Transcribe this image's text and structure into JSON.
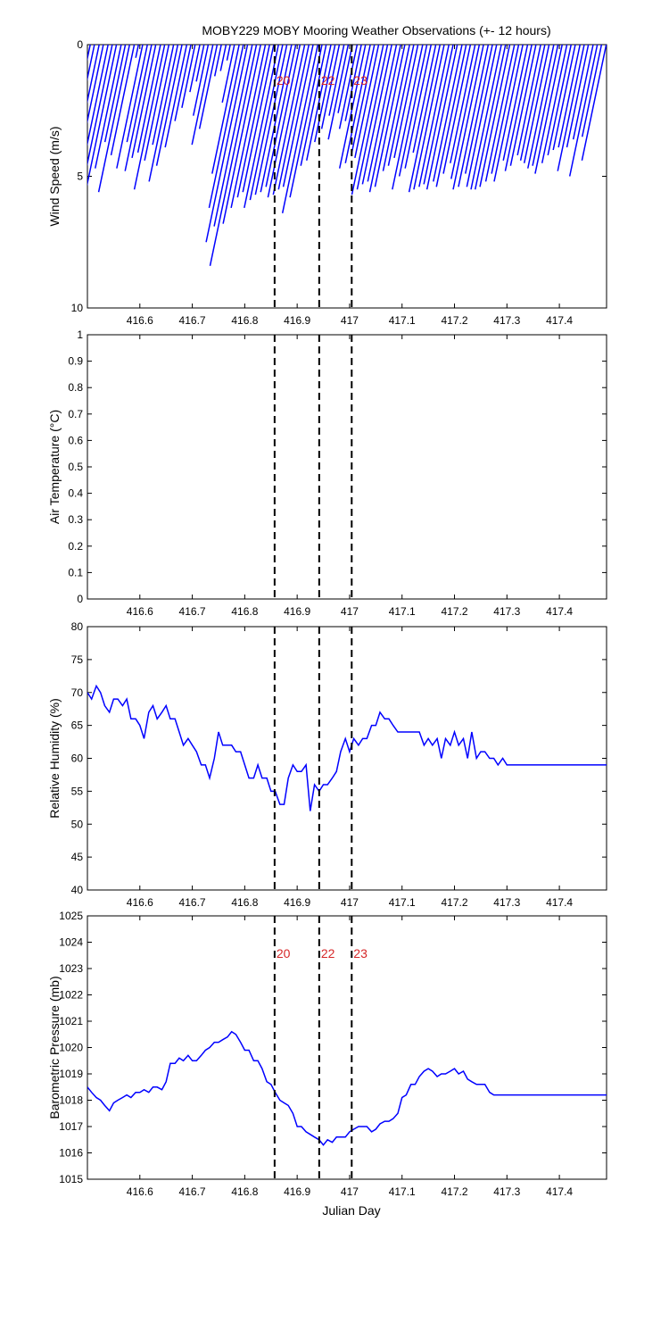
{
  "chart_data": {
    "title": "MOBY229 MOBY Mooring Weather Observations (+- 12 hours)",
    "xlabel": "Julian Day",
    "xlim": [
      416.5,
      417.49
    ],
    "xticks": [
      416.6,
      416.7,
      416.8,
      416.9,
      417,
      417.1,
      417.2,
      417.3,
      417.4
    ],
    "markers": [
      {
        "label": "20",
        "x": 416.857
      },
      {
        "label": "22",
        "x": 416.942
      },
      {
        "label": "23",
        "x": 417.004
      }
    ],
    "panels": [
      {
        "id": "wind",
        "type": "stick",
        "ylabel": "Wind Speed (m/s)",
        "ylim": [
          0,
          10
        ],
        "y_reversed": true,
        "yticks": [
          0,
          5,
          10
        ],
        "show_markers": true,
        "samples": [
          {
            "t": 416.502,
            "speed": 4.5
          },
          {
            "t": 416.51,
            "speed": 5.5
          },
          {
            "t": 416.519,
            "speed": 5.4
          },
          {
            "t": 416.527,
            "speed": 4.3
          },
          {
            "t": 416.536,
            "speed": 5.8
          },
          {
            "t": 416.544,
            "speed": 6.3
          },
          {
            "t": 416.552,
            "speed": 5.4
          },
          {
            "t": 416.561,
            "speed": 4.7
          },
          {
            "t": 416.569,
            "speed": 3.7
          },
          {
            "t": 416.577,
            "speed": 5.6
          },
          {
            "t": 416.586,
            "speed": 4.2
          },
          {
            "t": 416.594,
            "speed": 0.5
          },
          {
            "t": 416.602,
            "speed": 4.7
          },
          {
            "t": 416.611,
            "speed": 3.7
          },
          {
            "t": 416.619,
            "speed": 4.8
          },
          {
            "t": 416.627,
            "speed": 4.3
          },
          {
            "t": 416.636,
            "speed": 4.1
          },
          {
            "t": 416.644,
            "speed": 5.5
          },
          {
            "t": 416.652,
            "speed": 4.4
          },
          {
            "t": 416.661,
            "speed": 3.8
          },
          {
            "t": 416.669,
            "speed": 5.2
          },
          {
            "t": 416.677,
            "speed": 4.6
          },
          {
            "t": 416.686,
            "speed": 3.9
          },
          {
            "t": 416.694,
            "speed": 2.9
          },
          {
            "t": 416.702,
            "speed": 2.4
          },
          {
            "t": 416.711,
            "speed": 1.8
          },
          {
            "t": 416.719,
            "speed": 1.4
          },
          {
            "t": 416.727,
            "speed": 2.7
          },
          {
            "t": 416.736,
            "speed": 3.8
          },
          {
            "t": 416.744,
            "speed": 3.2
          },
          {
            "t": 416.752,
            "speed": 1.2
          },
          {
            "t": 416.761,
            "speed": 1.0
          },
          {
            "t": 416.769,
            "speed": 0.6
          },
          {
            "t": 416.777,
            "speed": 2.2
          },
          {
            "t": 416.786,
            "speed": 4.9
          },
          {
            "t": 416.794,
            "speed": 6.2
          },
          {
            "t": 416.802,
            "speed": 7.5
          },
          {
            "t": 416.811,
            "speed": 6.9
          },
          {
            "t": 416.819,
            "speed": 8.4
          },
          {
            "t": 416.827,
            "speed": 6.8
          },
          {
            "t": 416.836,
            "speed": 6.2
          },
          {
            "t": 416.844,
            "speed": 5.8
          },
          {
            "t": 416.852,
            "speed": 5.6
          },
          {
            "t": 416.861,
            "speed": 6.2
          },
          {
            "t": 416.869,
            "speed": 5.9
          },
          {
            "t": 416.877,
            "speed": 5.7
          },
          {
            "t": 416.886,
            "speed": 5.6
          },
          {
            "t": 416.894,
            "speed": 5.4
          },
          {
            "t": 416.902,
            "speed": 5.8
          },
          {
            "t": 416.911,
            "speed": 5.7
          },
          {
            "t": 416.919,
            "speed": 5.5
          },
          {
            "t": 416.927,
            "speed": 5.4
          },
          {
            "t": 416.936,
            "speed": 6.4
          },
          {
            "t": 416.944,
            "speed": 5.8
          },
          {
            "t": 416.952,
            "speed": 4.6
          },
          {
            "t": 416.961,
            "speed": 4.4
          },
          {
            "t": 416.969,
            "speed": 3.7
          },
          {
            "t": 416.977,
            "speed": 3.2
          },
          {
            "t": 416.986,
            "speed": 2.7
          },
          {
            "t": 416.994,
            "speed": 3.6
          },
          {
            "t": 417.002,
            "speed": 2.6
          },
          {
            "t": 417.011,
            "speed": 3.2
          },
          {
            "t": 417.019,
            "speed": 2.9
          },
          {
            "t": 417.027,
            "speed": 4.7
          },
          {
            "t": 417.036,
            "speed": 4.5
          },
          {
            "t": 417.044,
            "speed": 4.2
          },
          {
            "t": 417.052,
            "speed": 4.3
          },
          {
            "t": 417.061,
            "speed": 5.7
          },
          {
            "t": 417.069,
            "speed": 5.5
          },
          {
            "t": 417.077,
            "speed": 5.3
          },
          {
            "t": 417.086,
            "speed": 5.2
          },
          {
            "t": 417.094,
            "speed": 5.6
          },
          {
            "t": 417.102,
            "speed": 5.4
          },
          {
            "t": 417.111,
            "speed": 4.8
          },
          {
            "t": 417.119,
            "speed": 4.6
          },
          {
            "t": 417.127,
            "speed": 4.3
          },
          {
            "t": 417.136,
            "speed": 5.5
          },
          {
            "t": 417.144,
            "speed": 5.0
          },
          {
            "t": 417.152,
            "speed": 4.7
          },
          {
            "t": 417.161,
            "speed": 4.1
          },
          {
            "t": 417.169,
            "speed": 5.6
          },
          {
            "t": 417.177,
            "speed": 5.5
          },
          {
            "t": 417.186,
            "speed": 5.4
          },
          {
            "t": 417.194,
            "speed": 5.3
          },
          {
            "t": 417.202,
            "speed": 5.5
          },
          {
            "t": 417.211,
            "speed": 5.2
          },
          {
            "t": 417.219,
            "speed": 5.4
          },
          {
            "t": 417.227,
            "speed": 4.9
          },
          {
            "t": 417.236,
            "speed": 4.5
          },
          {
            "t": 417.244,
            "speed": 5.1
          },
          {
            "t": 417.252,
            "speed": 5.5
          },
          {
            "t": 417.261,
            "speed": 5.4
          },
          {
            "t": 417.269,
            "speed": 4.9
          },
          {
            "t": 417.277,
            "speed": 5.4
          },
          {
            "t": 417.286,
            "speed": 5.5
          },
          {
            "t": 417.294,
            "speed": 5.5
          },
          {
            "t": 417.302,
            "speed": 5.4
          },
          {
            "t": 417.311,
            "speed": 5.2
          },
          {
            "t": 417.319,
            "speed": 4.9
          },
          {
            "t": 417.327,
            "speed": 5.2
          },
          {
            "t": 417.336,
            "speed": 4.4
          },
          {
            "t": 417.344,
            "speed": 4.8
          },
          {
            "t": 417.352,
            "speed": 4.6
          },
          {
            "t": 417.361,
            "speed": 4.2
          },
          {
            "t": 417.369,
            "speed": 4.4
          },
          {
            "t": 417.377,
            "speed": 4.5
          },
          {
            "t": 417.386,
            "speed": 4.7
          },
          {
            "t": 417.394,
            "speed": 4.6
          },
          {
            "t": 417.402,
            "speed": 4.9
          },
          {
            "t": 417.411,
            "speed": 4.5
          },
          {
            "t": 417.419,
            "speed": 4.2
          },
          {
            "t": 417.427,
            "speed": 4.0
          },
          {
            "t": 417.436,
            "speed": 3.9
          },
          {
            "t": 417.444,
            "speed": 4.8
          },
          {
            "t": 417.452,
            "speed": 3.9
          },
          {
            "t": 417.461,
            "speed": 3.6
          },
          {
            "t": 417.469,
            "speed": 5.0
          },
          {
            "t": 417.477,
            "speed": 3.5
          },
          {
            "t": 417.486,
            "speed": 4.4
          }
        ]
      },
      {
        "id": "airtemp",
        "type": "line",
        "ylabel": "Air Temperature (°C)",
        "ylim": [
          0,
          1
        ],
        "yticks": [
          0,
          0.1,
          0.2,
          0.3,
          0.4,
          0.5,
          0.6,
          0.7,
          0.8,
          0.9,
          1
        ],
        "show_markers": false,
        "x": [],
        "y": []
      },
      {
        "id": "humidity",
        "type": "line",
        "ylabel": "Relative Humidity (%)",
        "ylim": [
          40,
          80
        ],
        "yticks": [
          40,
          45,
          50,
          55,
          60,
          65,
          70,
          75,
          80
        ],
        "show_markers": false,
        "x": [
          416.5,
          416.508,
          416.517,
          416.525,
          416.533,
          416.542,
          416.55,
          416.558,
          416.567,
          416.575,
          416.583,
          416.592,
          416.6,
          416.608,
          416.617,
          416.625,
          416.633,
          416.642,
          416.65,
          416.658,
          416.667,
          416.675,
          416.683,
          416.692,
          416.7,
          416.708,
          416.717,
          416.725,
          416.733,
          416.742,
          416.75,
          416.758,
          416.767,
          416.775,
          416.783,
          416.792,
          416.8,
          416.808,
          416.817,
          416.825,
          416.833,
          416.842,
          416.85,
          416.858,
          416.867,
          416.875,
          416.883,
          416.892,
          416.9,
          416.908,
          416.917,
          416.925,
          416.933,
          416.942,
          416.95,
          416.958,
          416.967,
          416.975,
          416.983,
          416.992,
          417.0,
          417.008,
          417.017,
          417.025,
          417.033,
          417.042,
          417.05,
          417.058,
          417.067,
          417.075,
          417.083,
          417.092,
          417.1,
          417.108,
          417.117,
          417.125,
          417.133,
          417.142,
          417.15,
          417.158,
          417.167,
          417.175,
          417.183,
          417.192,
          417.2,
          417.208,
          417.217,
          417.225,
          417.233,
          417.242,
          417.25,
          417.258,
          417.267,
          417.275,
          417.283,
          417.292,
          417.3,
          417.308,
          417.317,
          417.325,
          417.333,
          417.342,
          417.35,
          417.358,
          417.367,
          417.375,
          417.383,
          417.392,
          417.4,
          417.408,
          417.417,
          417.425,
          417.433,
          417.442,
          417.45,
          417.458,
          417.467,
          417.475,
          417.483,
          417.49
        ],
        "y": [
          70,
          69,
          71,
          70,
          68,
          67,
          69,
          69,
          68,
          69,
          66,
          66,
          65,
          63,
          67,
          68,
          66,
          67,
          68,
          66,
          66,
          64,
          62,
          63,
          62,
          61,
          59,
          59,
          57,
          60,
          64,
          62,
          62,
          62,
          61,
          61,
          59,
          57,
          57,
          59,
          57,
          57,
          55,
          55,
          53,
          53,
          57,
          59,
          58,
          58,
          59,
          52,
          56,
          55,
          56,
          56,
          57,
          58,
          61,
          63,
          61,
          63,
          62,
          63,
          63,
          65,
          65,
          67,
          66,
          66,
          65,
          64,
          64,
          64,
          64,
          64,
          64,
          62,
          63,
          62,
          63,
          60,
          63,
          62,
          64,
          62,
          63,
          60,
          64,
          60,
          61,
          61,
          60,
          60,
          59,
          60,
          59,
          59,
          59,
          59,
          59,
          59,
          59,
          59,
          59,
          59,
          59,
          59,
          59,
          59,
          59,
          59,
          59,
          59,
          59,
          59,
          59,
          59,
          59,
          59
        ]
      },
      {
        "id": "pressure",
        "type": "line",
        "ylabel": "Barometric Pressure (mb)",
        "ylim": [
          1015,
          1025
        ],
        "yticks": [
          1015,
          1016,
          1017,
          1018,
          1019,
          1020,
          1021,
          1022,
          1023,
          1024,
          1025
        ],
        "show_markers": true,
        "x": [
          416.5,
          416.508,
          416.517,
          416.525,
          416.533,
          416.542,
          416.55,
          416.558,
          416.567,
          416.575,
          416.583,
          416.592,
          416.6,
          416.608,
          416.617,
          416.625,
          416.633,
          416.642,
          416.65,
          416.658,
          416.667,
          416.675,
          416.683,
          416.692,
          416.7,
          416.708,
          416.717,
          416.725,
          416.733,
          416.742,
          416.75,
          416.758,
          416.767,
          416.775,
          416.783,
          416.792,
          416.8,
          416.808,
          416.817,
          416.825,
          416.833,
          416.842,
          416.85,
          416.858,
          416.867,
          416.875,
          416.883,
          416.892,
          416.9,
          416.908,
          416.917,
          416.925,
          416.933,
          416.942,
          416.95,
          416.958,
          416.967,
          416.975,
          416.983,
          416.992,
          417.0,
          417.008,
          417.017,
          417.025,
          417.033,
          417.042,
          417.05,
          417.058,
          417.067,
          417.075,
          417.083,
          417.092,
          417.1,
          417.108,
          417.117,
          417.125,
          417.133,
          417.142,
          417.15,
          417.158,
          417.167,
          417.175,
          417.183,
          417.192,
          417.2,
          417.208,
          417.217,
          417.225,
          417.233,
          417.242,
          417.25,
          417.258,
          417.267,
          417.275,
          417.283,
          417.292,
          417.3,
          417.308,
          417.317,
          417.325,
          417.333,
          417.342,
          417.35,
          417.358,
          417.367,
          417.375,
          417.383,
          417.392,
          417.4,
          417.408,
          417.417,
          417.425,
          417.433,
          417.442,
          417.45,
          417.458,
          417.467,
          417.475,
          417.483,
          417.49
        ],
        "y": [
          1018.5,
          1018.3,
          1018.1,
          1018.0,
          1017.8,
          1017.6,
          1017.9,
          1018.0,
          1018.1,
          1018.2,
          1018.1,
          1018.3,
          1018.3,
          1018.4,
          1018.3,
          1018.5,
          1018.5,
          1018.4,
          1018.7,
          1019.4,
          1019.4,
          1019.6,
          1019.5,
          1019.7,
          1019.5,
          1019.5,
          1019.7,
          1019.9,
          1020.0,
          1020.2,
          1020.2,
          1020.3,
          1020.4,
          1020.6,
          1020.5,
          1020.2,
          1019.9,
          1019.9,
          1019.5,
          1019.5,
          1019.2,
          1018.7,
          1018.6,
          1018.3,
          1018.0,
          1017.9,
          1017.8,
          1017.5,
          1017.0,
          1017.0,
          1016.8,
          1016.7,
          1016.6,
          1016.5,
          1016.3,
          1016.5,
          1016.4,
          1016.6,
          1016.6,
          1016.6,
          1016.8,
          1016.9,
          1017.0,
          1017.0,
          1017.0,
          1016.8,
          1016.9,
          1017.1,
          1017.2,
          1017.2,
          1017.3,
          1017.5,
          1018.1,
          1018.2,
          1018.6,
          1018.6,
          1018.9,
          1019.1,
          1019.2,
          1019.1,
          1018.9,
          1019.0,
          1019.0,
          1019.1,
          1019.2,
          1019.0,
          1019.1,
          1018.8,
          1018.7,
          1018.6,
          1018.6,
          1018.6,
          1018.3,
          1018.2,
          1018.2,
          1018.2,
          1018.2,
          1018.2,
          1018.2,
          1018.2,
          1018.2,
          1018.2,
          1018.2,
          1018.2,
          1018.2,
          1018.2,
          1018.2,
          1018.2,
          1018.2,
          1018.2,
          1018.2,
          1018.2,
          1018.2,
          1018.2,
          1018.2,
          1018.2,
          1018.2,
          1018.2,
          1018.2,
          1018.2
        ]
      }
    ]
  }
}
